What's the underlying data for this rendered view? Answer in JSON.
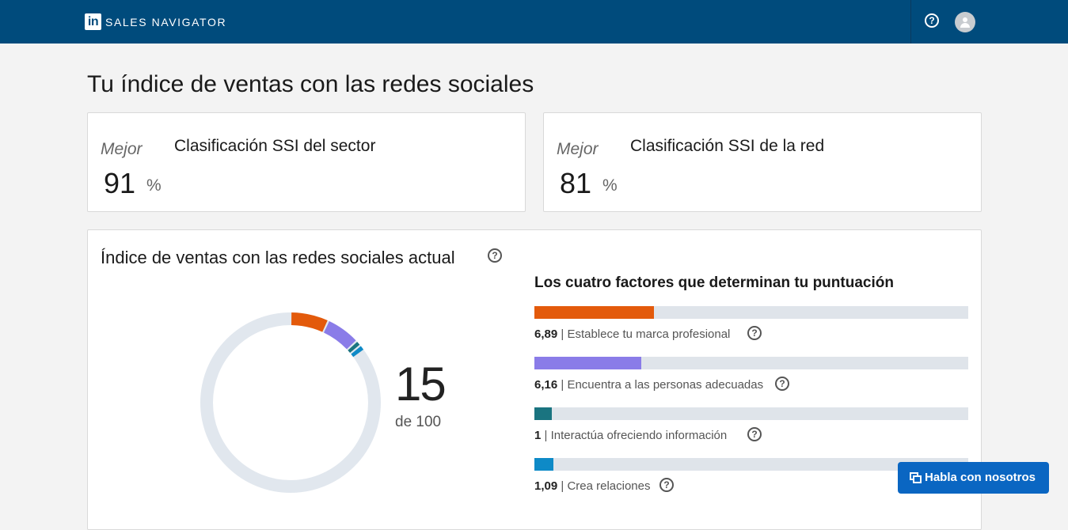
{
  "header": {
    "logo_text": "in",
    "brand": "SALES NAVIGATOR",
    "help_icon": "question-icon",
    "avatar_icon": "user-avatar-icon",
    "bg_color": "#004b7c"
  },
  "page_title": "Tu índice de ventas con las redes sociales",
  "rankings": [
    {
      "best_label": "Mejor",
      "title": "Clasificación SSI del sector",
      "value": "91",
      "unit": "%"
    },
    {
      "best_label": "Mejor",
      "title": "Clasificación SSI de la red",
      "value": "81",
      "unit": "%"
    }
  ],
  "current": {
    "title": "Índice de ventas con las redes sociales actual",
    "score": "15",
    "score_of": "de 100",
    "score_max": 100,
    "factors_heading": "Los cuatro factores que determinan tu puntuación",
    "factors": [
      {
        "score": "6,89",
        "label": "Establece tu marca profesional",
        "value": 6.89,
        "max": 25,
        "color": "#e35a0b"
      },
      {
        "score": "6,16",
        "label": "Encuentra a las personas adecuadas",
        "value": 6.16,
        "max": 25,
        "color": "#8a7ce8"
      },
      {
        "score": "1",
        "label": "Interactúa ofreciendo información",
        "value": 1,
        "max": 25,
        "color": "#1a7480"
      },
      {
        "score": "1,09",
        "label": "Crea relaciones",
        "value": 1.09,
        "max": 25,
        "color": "#0e8ac7"
      }
    ]
  },
  "chat_button": {
    "label": "Habla con nosotros",
    "icon": "chat-bubbles-icon"
  }
}
